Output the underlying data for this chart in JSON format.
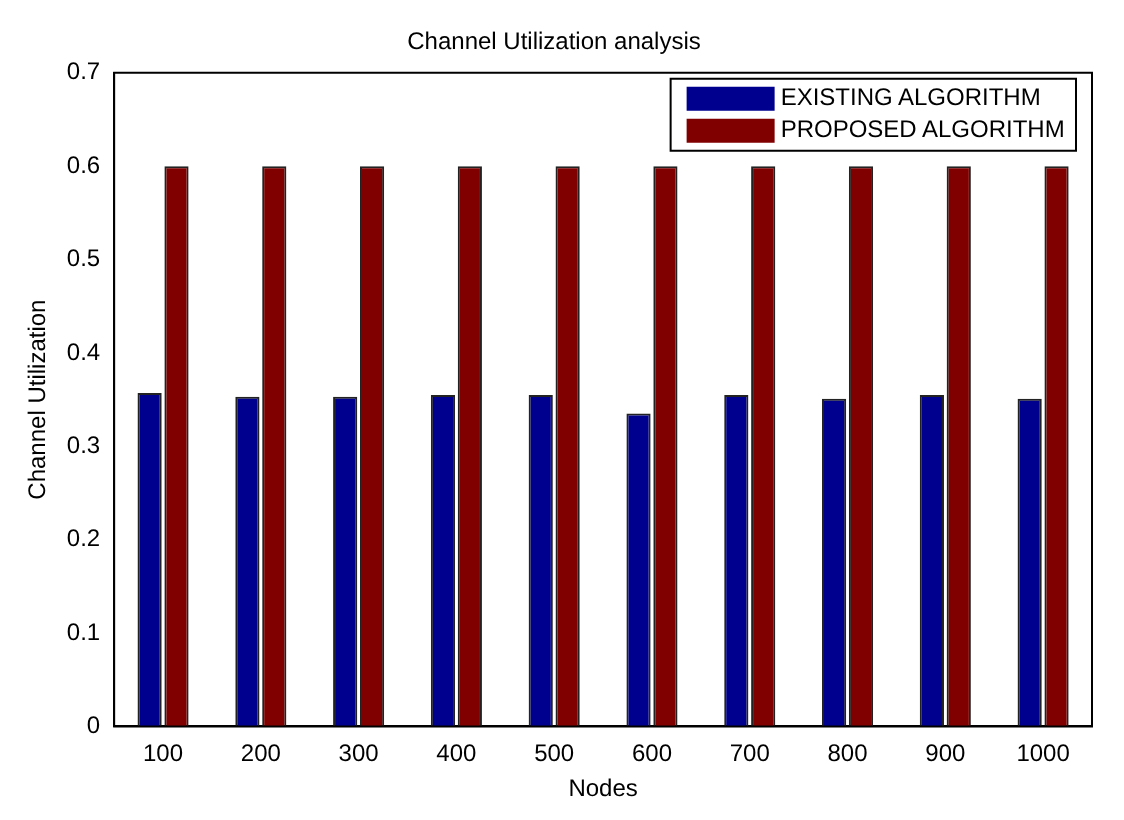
{
  "chart_data": {
    "type": "bar",
    "title": "Channel Utilization analysis",
    "xlabel": "Nodes",
    "ylabel": "Channel Utilization",
    "categories": [
      "100",
      "200",
      "300",
      "400",
      "500",
      "600",
      "700",
      "800",
      "900",
      "1000"
    ],
    "series": [
      {
        "name": "EXISTING ALGORITHM",
        "color": "#00008f",
        "values": [
          0.357,
          0.353,
          0.353,
          0.355,
          0.355,
          0.335,
          0.355,
          0.351,
          0.355,
          0.351
        ]
      },
      {
        "name": "PROPOSED ALGORITHM",
        "color": "#800000",
        "values": [
          0.6,
          0.6,
          0.6,
          0.6,
          0.6,
          0.6,
          0.6,
          0.6,
          0.6,
          0.6
        ]
      }
    ],
    "ylim": [
      0,
      0.7
    ],
    "yticks": [
      0,
      0.1,
      0.2,
      0.3,
      0.4,
      0.5,
      0.6,
      0.7
    ],
    "grid": false,
    "legend": "top right"
  }
}
